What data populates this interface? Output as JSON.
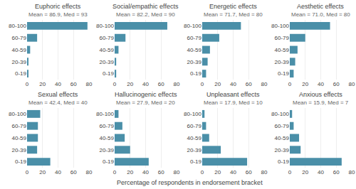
{
  "chart_data": [
    {
      "type": "bar",
      "orientation": "horizontal",
      "title": "Euphoric effects",
      "subtitle": "Mean = 86.9, Med = 93",
      "categories": [
        "80-100",
        "60-79",
        "40-59",
        "20-39",
        "0-19"
      ],
      "values": [
        78,
        13,
        4,
        1,
        1
      ],
      "color": "#4a8fa8",
      "xlim": [
        0,
        80
      ],
      "xticks": [
        0,
        20,
        40,
        60,
        80
      ],
      "grid": true
    },
    {
      "type": "bar",
      "orientation": "horizontal",
      "title": "Social/empathic effects",
      "subtitle": "Mean = 82.2, Med = 90",
      "categories": [
        "80-100",
        "60-79",
        "40-59",
        "20-39",
        "0-19"
      ],
      "values": [
        68,
        14,
        5,
        2,
        2
      ],
      "color": "#4a8fa8",
      "xlim": [
        0,
        80
      ],
      "xticks": [
        0,
        20,
        40,
        60,
        80
      ],
      "grid": true
    },
    {
      "type": "bar",
      "orientation": "horizontal",
      "title": "Energetic effects",
      "subtitle": "Mean = 71.7, Med = 80",
      "categories": [
        "80-100",
        "60-79",
        "40-59",
        "20-39",
        "0-19"
      ],
      "values": [
        50,
        22,
        10,
        7,
        5
      ],
      "color": "#4a8fa8",
      "xlim": [
        0,
        80
      ],
      "xticks": [
        0,
        20,
        40,
        60,
        80
      ],
      "grid": true
    },
    {
      "type": "bar",
      "orientation": "horizontal",
      "title": "Aesthetic effects",
      "subtitle": "Mean = 71.0, Med = 80",
      "categories": [
        "80-100",
        "60-79",
        "40-59",
        "20-39",
        "0-19"
      ],
      "values": [
        52,
        20,
        10,
        7,
        5
      ],
      "color": "#4a8fa8",
      "xlim": [
        0,
        80
      ],
      "xticks": [
        0,
        20,
        40,
        60,
        80
      ],
      "grid": true
    },
    {
      "type": "bar",
      "orientation": "horizontal",
      "title": "Sexual effects",
      "subtitle": "Mean = 42.4, Med = 40",
      "categories": [
        "80-100",
        "60-79",
        "40-59",
        "20-39",
        "0-19"
      ],
      "values": [
        17,
        14,
        14,
        13,
        30
      ],
      "color": "#4a8fa8",
      "xlim": [
        0,
        80
      ],
      "xticks": [
        0,
        20,
        40,
        60,
        80
      ],
      "grid": true
    },
    {
      "type": "bar",
      "orientation": "horizontal",
      "title": "Hallucinogenic effects",
      "subtitle": "Mean = 27.9, Med = 20",
      "categories": [
        "80-100",
        "60-79",
        "40-59",
        "20-39",
        "0-19"
      ],
      "values": [
        5,
        10,
        13,
        20,
        44
      ],
      "color": "#4a8fa8",
      "xlim": [
        0,
        80
      ],
      "xticks": [
        0,
        20,
        40,
        60,
        80
      ],
      "grid": true
    },
    {
      "type": "bar",
      "orientation": "horizontal",
      "title": "Unpleasant effects",
      "subtitle": "Mean = 17.9, Med = 10",
      "categories": [
        "80-100",
        "60-79",
        "40-59",
        "20-39",
        "0-19"
      ],
      "values": [
        3,
        5,
        9,
        24,
        58
      ],
      "color": "#4a8fa8",
      "xlim": [
        0,
        80
      ],
      "xticks": [
        0,
        20,
        40,
        60,
        80
      ],
      "grid": true
    },
    {
      "type": "bar",
      "orientation": "horizontal",
      "title": "Anxious effects",
      "subtitle": "Mean = 15.9, Med = 7",
      "categories": [
        "80-100",
        "60-79",
        "40-59",
        "20-39",
        "0-19"
      ],
      "values": [
        3,
        5,
        12,
        14,
        67
      ],
      "color": "#4a8fa8",
      "xlim": [
        0,
        80
      ],
      "xticks": [
        0,
        20,
        40,
        60,
        80
      ],
      "grid": true
    }
  ],
  "xlabel": "Percentage of respondents in endorsement bracket"
}
